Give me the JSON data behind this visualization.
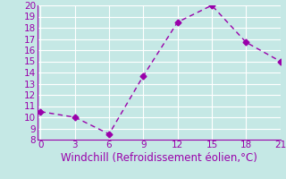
{
  "x": [
    0,
    3,
    6,
    9,
    12,
    15,
    18,
    21
  ],
  "y": [
    10.5,
    10.0,
    8.5,
    13.7,
    18.5,
    20.0,
    16.7,
    15.0
  ],
  "xlabel": "Windchill (Refroidissement éolien,°C)",
  "xlim": [
    -0.3,
    21
  ],
  "ylim": [
    8,
    20
  ],
  "xticks": [
    0,
    3,
    6,
    9,
    12,
    15,
    18,
    21
  ],
  "yticks": [
    8,
    9,
    10,
    11,
    12,
    13,
    14,
    15,
    16,
    17,
    18,
    19,
    20
  ],
  "line_color": "#9900aa",
  "marker": "D",
  "linestyle": "--",
  "background_color": "#c5e8e5",
  "grid_color": "#ffffff",
  "xlabel_fontsize": 8.5,
  "tick_fontsize": 7.5
}
